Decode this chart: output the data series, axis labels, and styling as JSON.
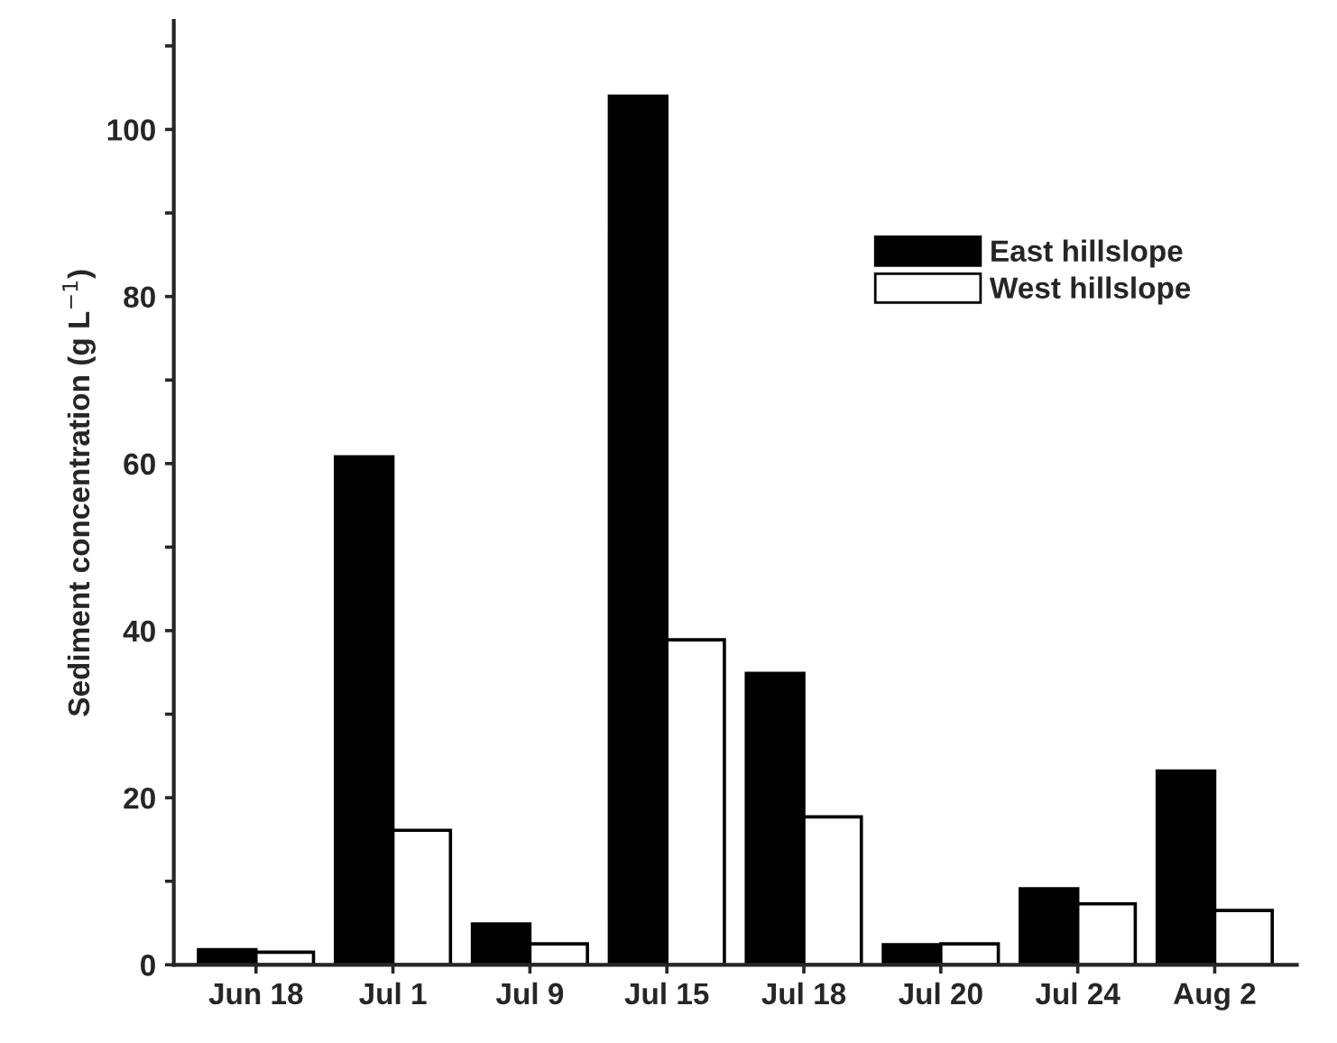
{
  "chart_data": {
    "type": "bar",
    "ylabel": "Sediment concentration (g L$^{−1}$)",
    "categories": [
      "Jun 18",
      "Jul 1",
      "Jul 9",
      "Jul 15",
      "Jul 18",
      "Jul 20",
      "Jul 24",
      "Aug 2"
    ],
    "series": [
      {
        "name": "East hillslope",
        "color": "#000000",
        "values": [
          1.8,
          60.8,
          4.9,
          104,
          34.9,
          2.4,
          9.1,
          23.2
        ]
      },
      {
        "name": "West hillslope",
        "color": "#ffffff",
        "values": [
          1.5,
          16.1,
          2.5,
          38.9,
          17.7,
          2.5,
          7.3,
          6.5
        ]
      }
    ],
    "ylim": [
      0,
      113
    ],
    "yticks": [
      0,
      {
        "value": 10,
        "label": null
      },
      20,
      {
        "value": 30,
        "label": null
      },
      40,
      {
        "value": 50,
        "label": null
      },
      60,
      {
        "value": 70,
        "label": null
      },
      80,
      {
        "value": 90,
        "label": null
      },
      100,
      {
        "value": 110,
        "label": null
      }
    ],
    "grid": false,
    "legend": "top right"
  }
}
